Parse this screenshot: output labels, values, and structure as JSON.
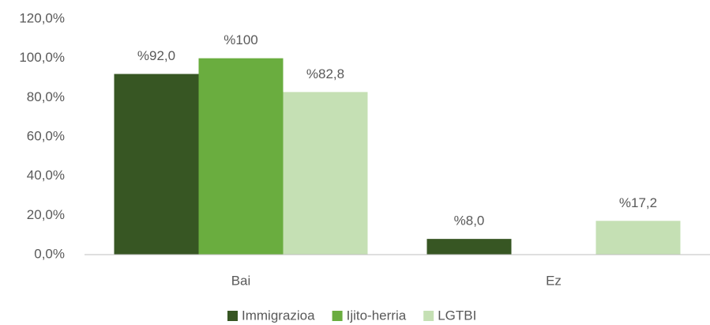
{
  "chart_data": {
    "type": "bar",
    "categories": [
      "Bai",
      "Ez"
    ],
    "series": [
      {
        "name": "Immigrazioa",
        "color": "#375623",
        "values": [
          92.0,
          8.0
        ],
        "value_labels": [
          "%92,0",
          "%8,0"
        ]
      },
      {
        "name": "Ijito-herria",
        "color": "#6aad3f",
        "values": [
          100,
          0
        ],
        "value_labels": [
          "%100",
          null
        ]
      },
      {
        "name": "LGTBI",
        "color": "#c5e0b4",
        "values": [
          82.8,
          17.2
        ],
        "value_labels": [
          "%82,8",
          "%17,2"
        ]
      }
    ],
    "ylim": [
      0,
      120
    ],
    "yticks": [
      {
        "value": 0,
        "label": "0,0%"
      },
      {
        "value": 20,
        "label": "20,0%"
      },
      {
        "value": 40,
        "label": "40,0%"
      },
      {
        "value": 60,
        "label": "60,0%"
      },
      {
        "value": 80,
        "label": "80,0%"
      },
      {
        "value": 100,
        "label": "100,0%"
      },
      {
        "value": 120,
        "label": "120,0%"
      }
    ],
    "grid": false,
    "legend": "bottom"
  }
}
